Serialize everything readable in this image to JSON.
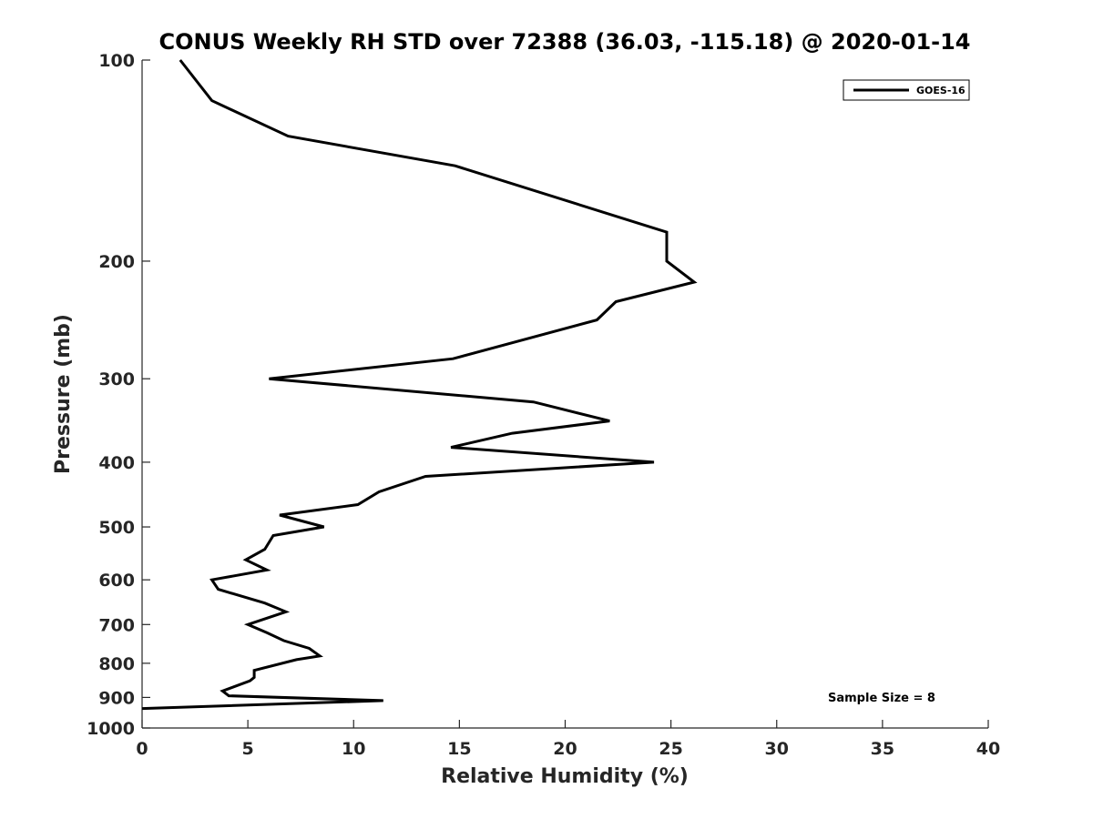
{
  "chart_data": {
    "type": "line",
    "title": "CONUS Weekly RH STD over 72388 (36.03, -115.18) @ 2020-01-14",
    "xlabel": "Relative Humidity (%)",
    "ylabel": "Pressure (mb)",
    "xlim": [
      0,
      40
    ],
    "ylim": [
      100,
      1000
    ],
    "y_scale": "log",
    "y_reversed": true,
    "grid": false,
    "x_ticks": [
      "0",
      "5",
      "10",
      "15",
      "20",
      "25",
      "30",
      "35",
      "40"
    ],
    "y_ticks": [
      "100",
      "200",
      "300",
      "400",
      "500",
      "600",
      "700",
      "800",
      "900",
      "1000"
    ],
    "legend": {
      "entries": [
        "GOES-16"
      ],
      "placement": "top-right"
    },
    "annotation": "Sample Size = 8",
    "series": [
      {
        "name": "GOES-16",
        "color": "#000000",
        "points": [
          [
            1.8,
            100
          ],
          [
            3.3,
            115
          ],
          [
            6.9,
            130
          ],
          [
            14.8,
            144
          ],
          [
            24.8,
            181
          ],
          [
            24.8,
            200
          ],
          [
            26.1,
            215
          ],
          [
            22.4,
            230
          ],
          [
            21.5,
            245
          ],
          [
            14.7,
            280
          ],
          [
            6.0,
            300
          ],
          [
            18.5,
            325
          ],
          [
            22.1,
            347
          ],
          [
            17.5,
            362
          ],
          [
            14.6,
            380
          ],
          [
            24.2,
            400
          ],
          [
            13.4,
            420
          ],
          [
            11.2,
            443
          ],
          [
            10.2,
            463
          ],
          [
            6.5,
            480
          ],
          [
            8.6,
            500
          ],
          [
            6.2,
            515
          ],
          [
            5.8,
            540
          ],
          [
            4.9,
            560
          ],
          [
            5.9,
            580
          ],
          [
            3.3,
            600
          ],
          [
            3.6,
            620
          ],
          [
            5.8,
            650
          ],
          [
            6.8,
            670
          ],
          [
            5.0,
            700
          ],
          [
            5.9,
            720
          ],
          [
            6.7,
            740
          ],
          [
            7.9,
            760
          ],
          [
            8.4,
            780
          ],
          [
            7.3,
            790
          ],
          [
            5.3,
            820
          ],
          [
            5.3,
            840
          ],
          [
            5.1,
            850
          ],
          [
            3.8,
            880
          ],
          [
            4.1,
            895
          ],
          [
            11.4,
            910
          ],
          [
            0.0,
            935
          ]
        ]
      }
    ]
  }
}
